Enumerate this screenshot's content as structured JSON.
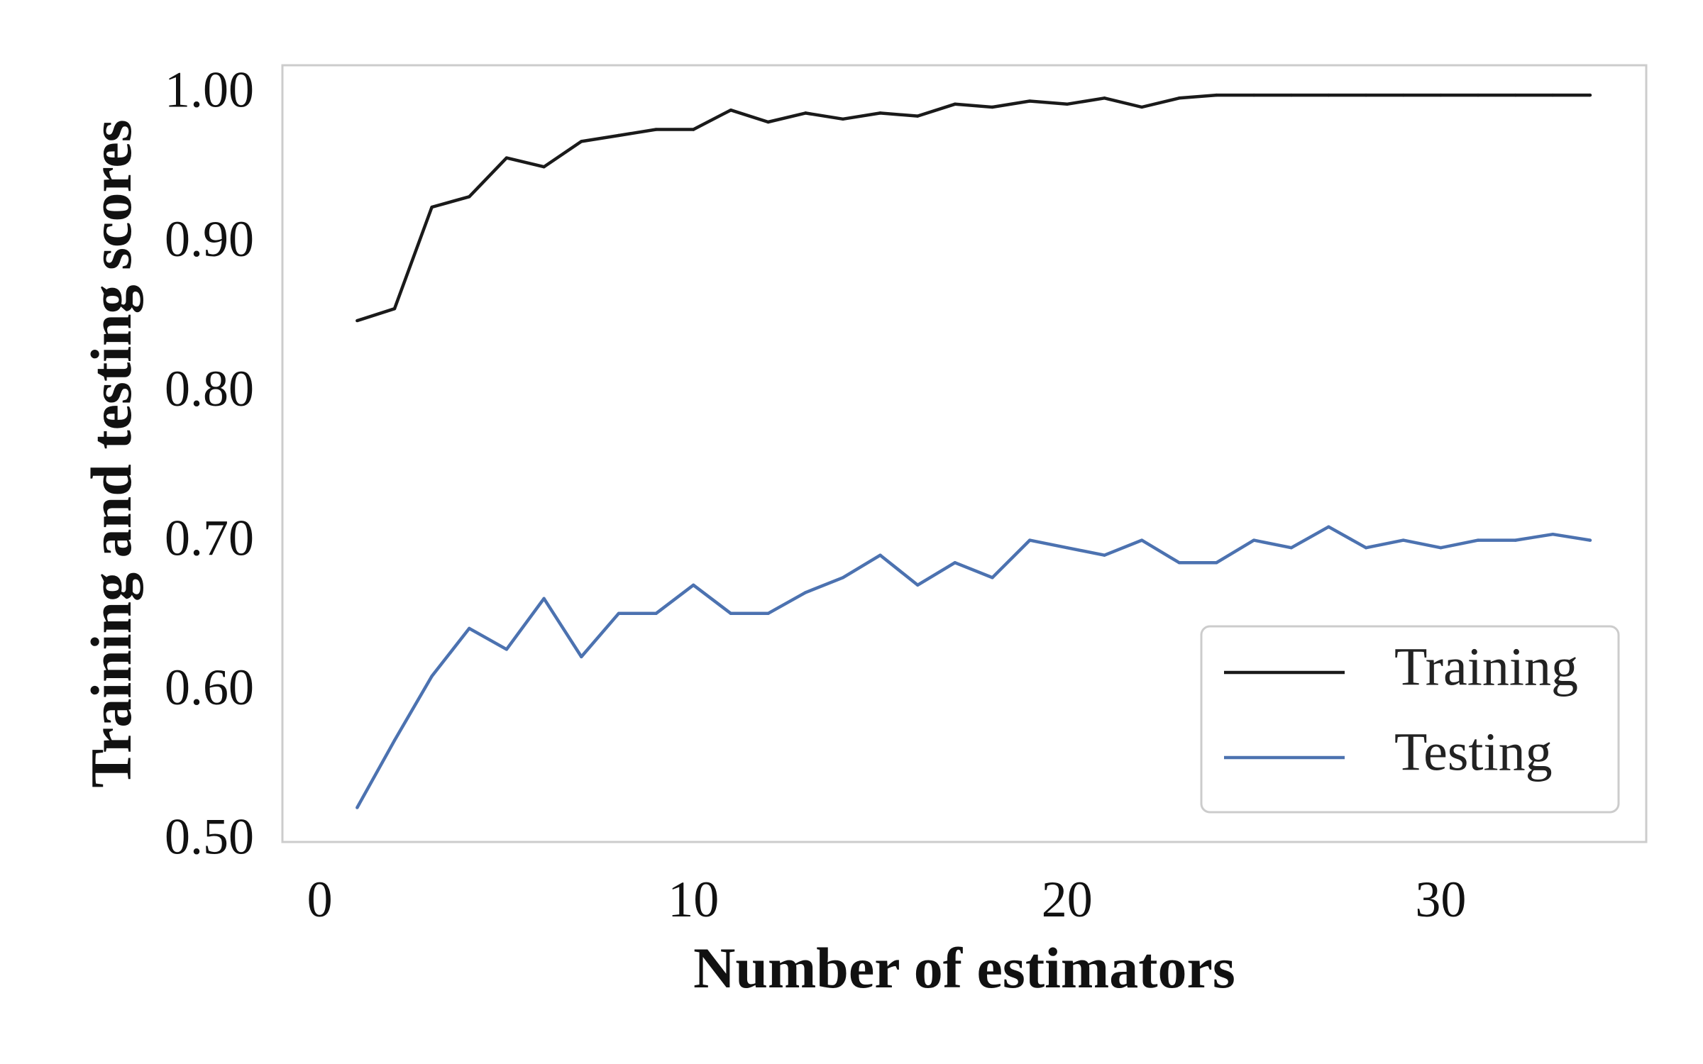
{
  "chart_data": {
    "type": "line",
    "title": "",
    "xlabel": "Number of estimators",
    "ylabel": "Training and testing scores",
    "xlim": [
      -1,
      35.5
    ],
    "ylim": [
      0.5,
      1.02
    ],
    "xticks": [
      0,
      10,
      20,
      30
    ],
    "xtick_labels": [
      "0",
      "10",
      "20",
      "30"
    ],
    "yticks": [
      0.5,
      0.6,
      0.7,
      0.8,
      0.9,
      1.0
    ],
    "ytick_labels": [
      "0.50",
      "0.60",
      "0.70",
      "0.80",
      "0.90",
      "1.00"
    ],
    "grid": false,
    "legend_position": "lower-right",
    "x": [
      1,
      2,
      3,
      4,
      5,
      6,
      7,
      8,
      9,
      10,
      11,
      12,
      13,
      14,
      15,
      16,
      17,
      18,
      19,
      20,
      21,
      22,
      23,
      24,
      25,
      26,
      27,
      28,
      29,
      30,
      31,
      32,
      33,
      34
    ],
    "series": [
      {
        "name": "Training",
        "color": "#1a1a1a",
        "values": [
          0.849,
          0.857,
          0.925,
          0.932,
          0.958,
          0.952,
          0.969,
          0.973,
          0.977,
          0.977,
          0.99,
          0.982,
          0.988,
          0.984,
          0.988,
          0.986,
          0.994,
          0.992,
          0.996,
          0.994,
          0.998,
          0.992,
          0.998,
          1.0,
          1.0,
          1.0,
          1.0,
          1.0,
          1.0,
          1.0,
          1.0,
          1.0,
          1.0,
          1.0
        ]
      },
      {
        "name": "Testing",
        "color": "#4c72b0",
        "values": [
          0.523,
          0.568,
          0.611,
          0.643,
          0.629,
          0.663,
          0.624,
          0.653,
          0.653,
          0.672,
          0.653,
          0.653,
          0.667,
          0.677,
          0.692,
          0.672,
          0.687,
          0.677,
          0.702,
          0.697,
          0.692,
          0.702,
          0.687,
          0.687,
          0.702,
          0.697,
          0.711,
          0.697,
          0.702,
          0.697,
          0.702,
          0.702,
          0.706,
          0.702
        ]
      }
    ]
  }
}
